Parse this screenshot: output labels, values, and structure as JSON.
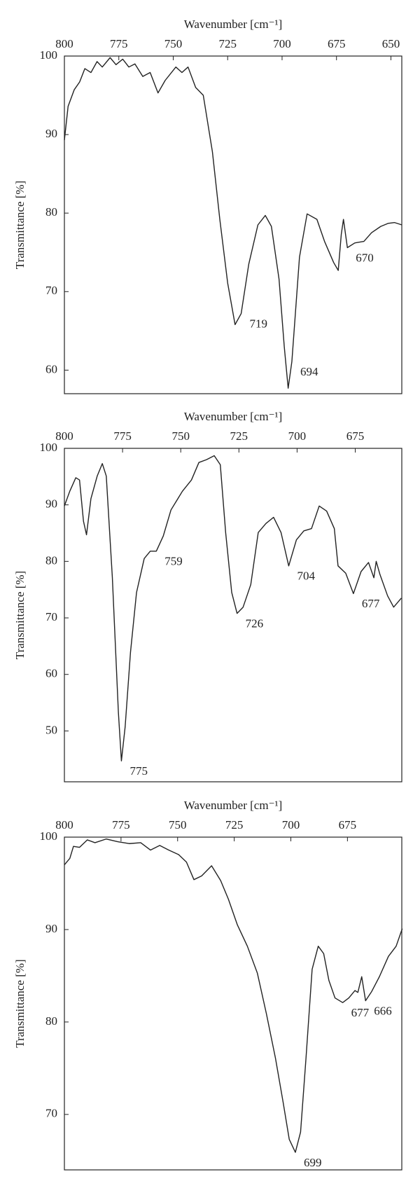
{
  "chart_data": [
    {
      "type": "line",
      "x_label": "Wavenumber [cm⁻¹]",
      "y_label": "Transmittance [%]",
      "xlim": [
        800,
        645
      ],
      "xticks": [
        800,
        775,
        750,
        725,
        700,
        675,
        650
      ],
      "ylim": [
        57,
        100
      ],
      "yticks": [
        60,
        70,
        80,
        90,
        100
      ],
      "series": [
        {
          "color": "#222222",
          "x": [
            800,
            798.3,
            795.5,
            793,
            790.6,
            787.8,
            785,
            782.6,
            779,
            776.3,
            773.2,
            770.4,
            767.6,
            764,
            760.6,
            757,
            753.7,
            748.8,
            746,
            743.2,
            739.7,
            736.2,
            732,
            728.6,
            725,
            721.6,
            718.8,
            715.3,
            711.1,
            707.7,
            704.9,
            701.4,
            699,
            697.2,
            695.5,
            692,
            688.5,
            684,
            680.5,
            676.3,
            674.2,
            672.8,
            671.8,
            670,
            666.6,
            662.4,
            658.9,
            654.7,
            651.2,
            648.4,
            645
          ],
          "values": [
            89.3,
            93.6,
            95.7,
            96.7,
            98.4,
            97.9,
            99.3,
            98.6,
            99.8,
            98.9,
            99.6,
            98.6,
            99,
            97.4,
            97.9,
            95.3,
            96.9,
            98.6,
            97.9,
            98.6,
            96,
            95,
            87.8,
            79.2,
            71.1,
            65.8,
            67.2,
            73.5,
            78.5,
            79.7,
            78.3,
            71.6,
            63,
            57.7,
            61.1,
            74.4,
            79.9,
            79.2,
            76.4,
            73.7,
            72.7,
            77.3,
            79.2,
            75.6,
            76.2,
            76.4,
            77.5,
            78.3,
            78.7,
            78.8,
            78.5
          ]
        }
      ],
      "annotations": [
        "719",
        "694",
        "670"
      ]
    },
    {
      "type": "line",
      "x_label": "Wavenumber [cm⁻¹]",
      "y_label": "Transmittance [%]",
      "xlim": [
        800,
        655
      ],
      "xticks": [
        800,
        775,
        750,
        725,
        700,
        675
      ],
      "ylim": [
        41,
        100
      ],
      "yticks": [
        50,
        60,
        70,
        80,
        90,
        100
      ],
      "series": [
        {
          "color": "#222222",
          "x": [
            800,
            797.7,
            795.1,
            793.5,
            791.8,
            790.5,
            788.6,
            785.9,
            783.7,
            782,
            779.4,
            776.8,
            775.5,
            773.9,
            771.6,
            769,
            765.7,
            763.1,
            760.5,
            757.5,
            754.2,
            749.3,
            745.4,
            742.2,
            738.9,
            735.6,
            733,
            730.7,
            728.1,
            725.8,
            723.2,
            719.9,
            716.7,
            713.4,
            710.1,
            706.9,
            703.6,
            700.3,
            697.1,
            693.8,
            690.5,
            687.3,
            684,
            682.4,
            679.1,
            675.8,
            672.5,
            669.3,
            667,
            666,
            664.4,
            661.1,
            658.5,
            655.2
          ],
          "values": [
            89.8,
            92.4,
            94.8,
            94.4,
            87.1,
            84.7,
            91.1,
            95.1,
            97.3,
            95.1,
            77.2,
            53.3,
            44.7,
            50.7,
            63.9,
            74.5,
            80.5,
            81.8,
            81.8,
            84.5,
            89.1,
            92.4,
            94.4,
            97.5,
            98,
            98.7,
            97.1,
            85.1,
            74.5,
            70.8,
            71.9,
            75.9,
            85.1,
            86.7,
            87.8,
            85.1,
            79.2,
            83.8,
            85.4,
            85.8,
            89.8,
            88.9,
            85.8,
            79.2,
            77.9,
            74.3,
            78.2,
            79.8,
            77.1,
            80,
            77.7,
            73.9,
            71.9,
            73.5
          ]
        }
      ],
      "annotations": [
        "775",
        "759",
        "726",
        "704",
        "677"
      ]
    },
    {
      "type": "line",
      "x_label": "Wavenumber [cm⁻¹]",
      "y_label": "Transmittance [%]",
      "xlim": [
        800,
        651
      ],
      "xticks": [
        800,
        775,
        750,
        725,
        700,
        675
      ],
      "ylim": [
        64,
        100
      ],
      "yticks": [
        70,
        80,
        90,
        100
      ],
      "series": [
        {
          "color": "#222222",
          "x": [
            800,
            797.6,
            796,
            793.3,
            789.9,
            786.5,
            781.5,
            776.4,
            771.4,
            766.3,
            762,
            757.9,
            753.9,
            749.5,
            746.1,
            742.8,
            739.4,
            735,
            731,
            727.6,
            723.6,
            719.2,
            714.8,
            710.8,
            706.8,
            703.4,
            700.7,
            698,
            695.7,
            693.3,
            690.6,
            687.9,
            685.5,
            683.2,
            680.5,
            677.1,
            674.4,
            671.7,
            670.4,
            668.7,
            667,
            664.3,
            660.9,
            656.9,
            653.5,
            650.8
          ],
          "values": [
            97,
            97.7,
            99,
            98.9,
            99.7,
            99.4,
            99.8,
            99.5,
            99.3,
            99.4,
            98.6,
            99.1,
            98.6,
            98.1,
            97.3,
            95.4,
            95.8,
            96.9,
            95.3,
            93.3,
            90.5,
            88.2,
            85.3,
            80.9,
            76.1,
            71.3,
            67.3,
            65.9,
            68.1,
            76.1,
            85.7,
            88.2,
            87.4,
            84.5,
            82.6,
            82.1,
            82.6,
            83.4,
            83.2,
            84.9,
            82.3,
            83.3,
            84.9,
            87.1,
            88.2,
            90.1
          ]
        }
      ],
      "annotations": [
        "699",
        "677",
        "666"
      ]
    }
  ]
}
